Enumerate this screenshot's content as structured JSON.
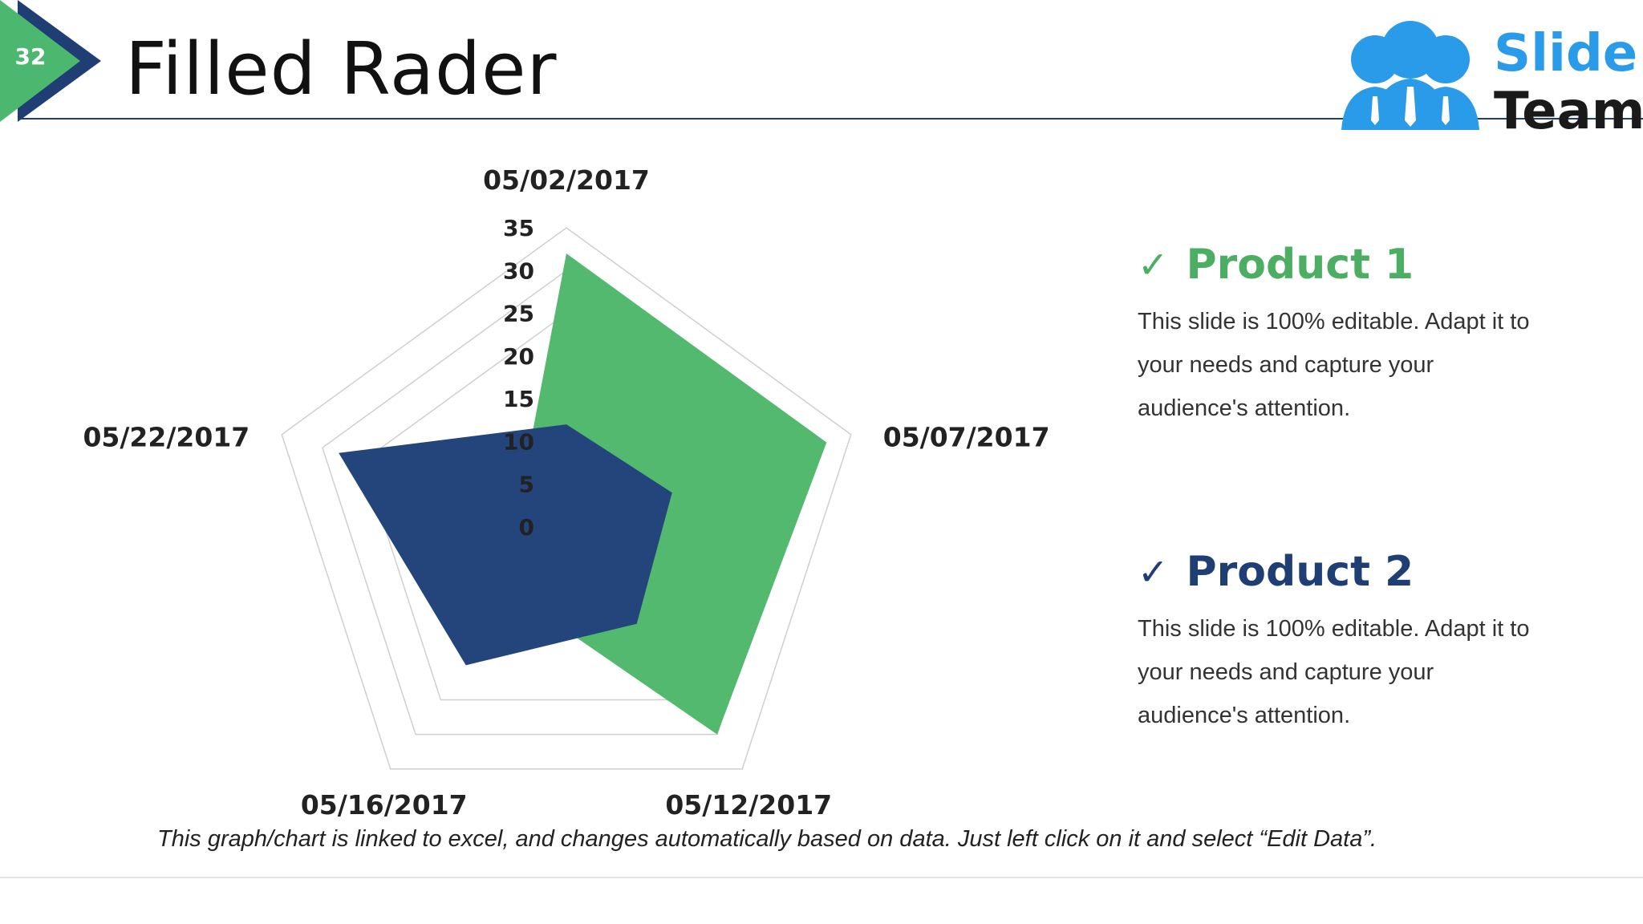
{
  "slide": {
    "number": "32",
    "title": "Filled Rader",
    "accent_green": "#4cb86f",
    "accent_navy": "#1f3f74"
  },
  "logo": {
    "word1": "Slide",
    "word2": "Team",
    "icon": "people-group-icon"
  },
  "chart_data": {
    "type": "radar",
    "categories": [
      "05/02/2017",
      "05/07/2017",
      "05/12/2017",
      "05/16/2017",
      "05/22/2017"
    ],
    "r_ticks": [
      "35",
      "30",
      "25",
      "20",
      "15",
      "10",
      "5",
      "0"
    ],
    "rlim": [
      0,
      35
    ],
    "rings": [
      25,
      30,
      35
    ],
    "series": [
      {
        "name": "Product 1",
        "color": "#52b96e",
        "values": [
          32,
          32,
          30,
          10,
          6
        ]
      },
      {
        "name": "Product 2",
        "color": "#23457c",
        "values": [
          12,
          13,
          14,
          20,
          28
        ]
      }
    ]
  },
  "products": [
    {
      "name": "Product 1",
      "check": "✓",
      "color": "#4cae63",
      "desc": [
        "This slide is 100% editable. Adapt it to",
        "your needs and capture your",
        "audience's attention."
      ]
    },
    {
      "name": "Product 2",
      "check": "✓",
      "color": "#1f3f74",
      "desc": [
        "This slide is 100% editable. Adapt it to",
        "your needs and capture your",
        "audience's attention."
      ]
    }
  ],
  "footnote": "This graph/chart is linked to excel, and changes automatically based on data. Just left click on it and select “Edit Data”."
}
